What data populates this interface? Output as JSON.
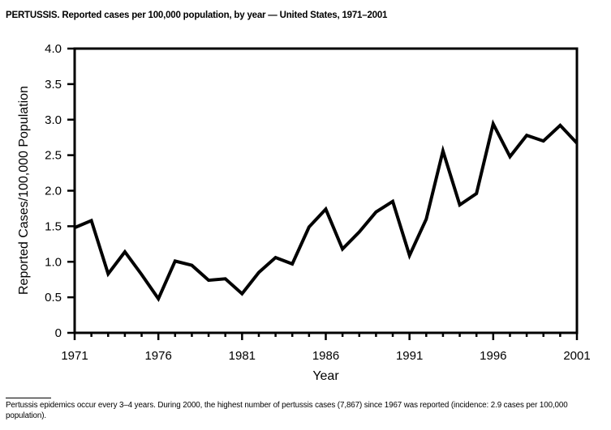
{
  "figure": {
    "title": "PERTUSSIS. Reported cases per 100,000 population, by year — United States, 1971–2001",
    "footnote": "Pertussis epidemics occur every 3–4 years. During 2000, the highest number of pertussis cases (7,867) since 1967 was reported (incidence: 2.9 cases per 100,000 population)."
  },
  "colors": {
    "background": "#ffffff",
    "axis": "#000000",
    "line": "#000000",
    "text": "#000000"
  },
  "chart_data": {
    "type": "line",
    "title": "PERTUSSIS. Reported cases per 100,000 population, by year — United States, 1971–2001",
    "xlabel": "Year",
    "ylabel": "Reported Cases/100,000 Population",
    "x": [
      1971,
      1972,
      1973,
      1974,
      1975,
      1976,
      1977,
      1978,
      1979,
      1980,
      1981,
      1982,
      1983,
      1984,
      1985,
      1986,
      1987,
      1988,
      1989,
      1990,
      1991,
      1992,
      1993,
      1994,
      1995,
      1996,
      1997,
      1998,
      1999,
      2000,
      2001
    ],
    "values": [
      1.48,
      1.58,
      0.83,
      1.14,
      0.82,
      0.48,
      1.01,
      0.95,
      0.74,
      0.76,
      0.55,
      0.85,
      1.06,
      0.97,
      1.49,
      1.74,
      1.18,
      1.42,
      1.7,
      1.85,
      1.09,
      1.6,
      2.56,
      1.8,
      1.96,
      2.94,
      2.48,
      2.78,
      2.7,
      2.92,
      2.67
    ],
    "xlim": [
      1971,
      2001
    ],
    "ylim": [
      0,
      4.0
    ],
    "x_major_ticks": [
      1971,
      1976,
      1981,
      1986,
      1991,
      1996,
      2001
    ],
    "x_minor_tick_interval": 1,
    "y_ticks": [
      0,
      0.5,
      1.0,
      1.5,
      2.0,
      2.5,
      3.0,
      3.5,
      4.0
    ],
    "y_tick_labels": [
      "0",
      "0.5",
      "1.0",
      "1.5",
      "2.0",
      "2.5",
      "3.0",
      "3.5",
      "4.0"
    ],
    "grid": false,
    "legend": false,
    "line_color": "#000000",
    "line_width": 4,
    "marker": "none"
  }
}
